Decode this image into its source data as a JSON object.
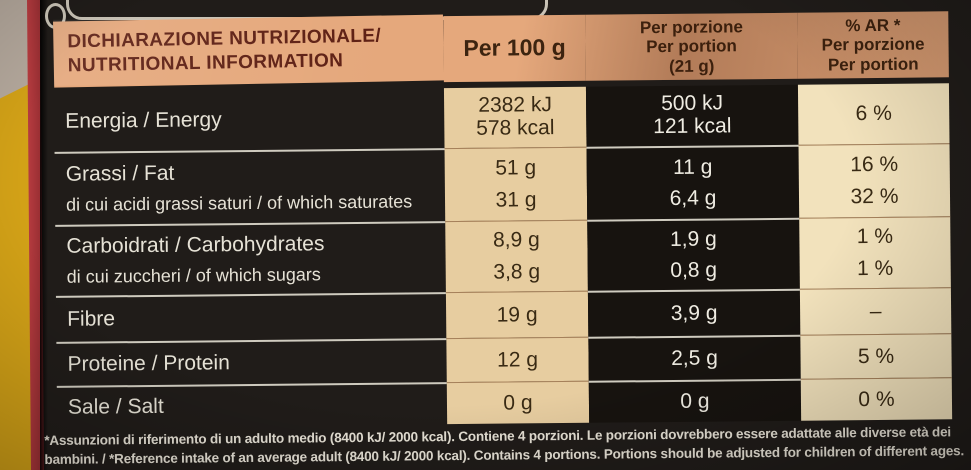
{
  "header": {
    "title_line1": "DICHIARAZIONE NUTRIZIONALE/",
    "title_line2": "NUTRITIONAL INFORMATION",
    "col_per100": "Per 100 g",
    "col_portion": [
      "Per porzione",
      "Per portion",
      "(21 g)"
    ],
    "col_ar": [
      "% AR *",
      "Per porzione",
      "Per portion"
    ]
  },
  "rows": [
    {
      "label": [
        "Energia / Energy"
      ],
      "per100": [
        "2382 kJ",
        "578 kcal"
      ],
      "portion": [
        "500 kJ",
        "121 kcal"
      ],
      "ar": [
        "6 %"
      ]
    },
    {
      "label": [
        "Grassi / Fat",
        "di cui acidi grassi saturi / of which saturates"
      ],
      "per100": [
        "51 g",
        "31 g"
      ],
      "portion": [
        "11 g",
        "6,4 g"
      ],
      "ar": [
        "16 %",
        "32 %"
      ]
    },
    {
      "label": [
        "Carboidrati / Carbohydrates",
        "di cui zuccheri / of which sugars"
      ],
      "per100": [
        "8,9 g",
        "3,8 g"
      ],
      "portion": [
        "1,9 g",
        "0,8 g"
      ],
      "ar": [
        "1 %",
        "1 %"
      ]
    },
    {
      "label": [
        "Fibre"
      ],
      "per100": [
        "19 g"
      ],
      "portion": [
        "3,9 g"
      ],
      "ar": [
        "–"
      ]
    },
    {
      "label": [
        "Proteine / Protein"
      ],
      "per100": [
        "12 g"
      ],
      "portion": [
        "2,5 g"
      ],
      "ar": [
        "5 %"
      ]
    },
    {
      "label": [
        "Sale / Salt"
      ],
      "per100": [
        "0 g"
      ],
      "portion": [
        "0 g"
      ],
      "ar": [
        "0 %"
      ]
    }
  ],
  "footnote": {
    "line1": "*Assunzioni di riferimento di un adulto medio (8400 kJ/ 2000 kcal). Contiene 4 porzioni. Le porzioni dovrebbero essere adattate alle diverse età dei",
    "line2": "bambini. / *Reference intake of an average adult (8400 kJ/ 2000 kcal). Contains 4 portions. Portions should be adjusted for children of different ages."
  },
  "colors": {
    "header_bg": "#e5a87c",
    "header_title_text": "#5e2014",
    "per100_col_bg": "#e7cda0",
    "ar_col_bg": "#f2e2bc",
    "portion_col_bg": "#17130f",
    "package_black": "#201c19",
    "edge_yellow": "#d2a117",
    "edge_red": "#b83c40"
  }
}
